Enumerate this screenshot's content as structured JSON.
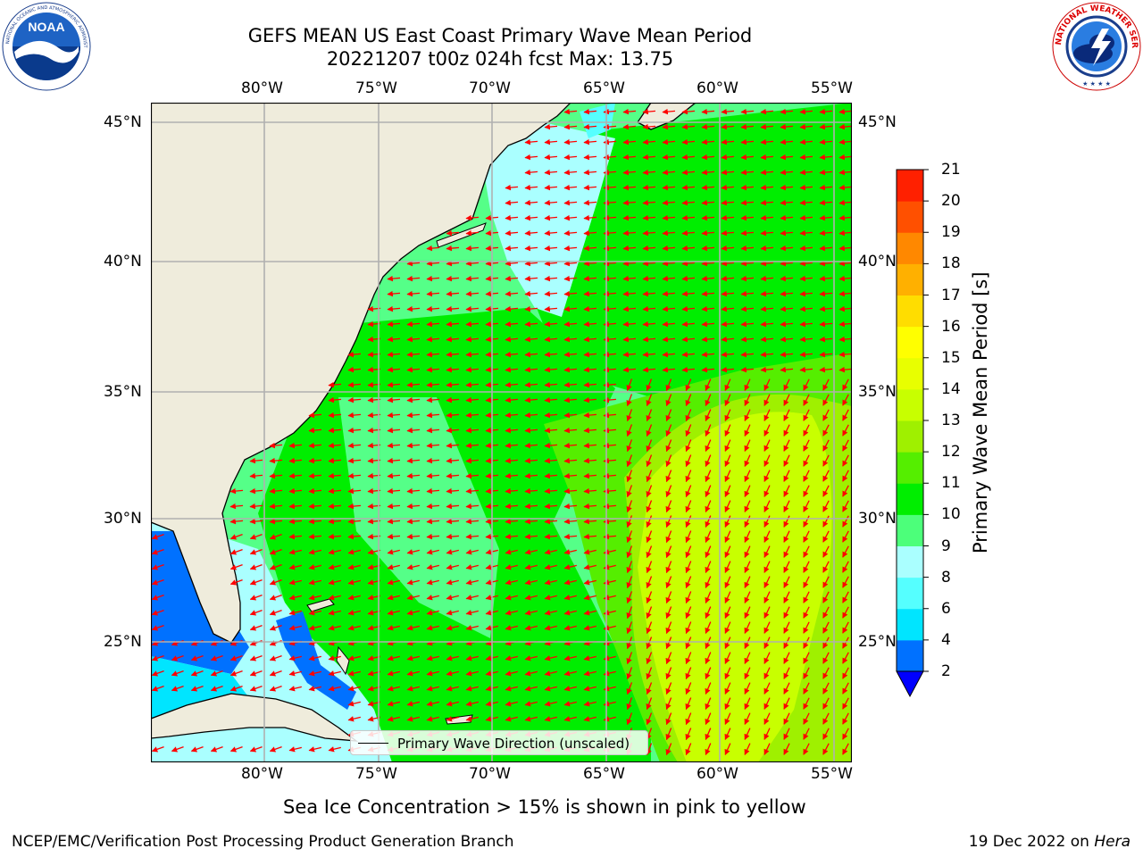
{
  "title": {
    "line1": "GEFS MEAN US East Coast Primary Wave Mean Period",
    "line2": "20221207 t00z 024h fcst   Max: 13.75"
  },
  "logos": {
    "left": {
      "icon": "noaa-logo",
      "text": "NOAA",
      "ring_text": "NATIONAL OCEANIC AND ATMOSPHERIC ADMINISTRATION · U.S. DEPARTMENT OF COMMERCE"
    },
    "right": {
      "icon": "nws-logo",
      "ring_text": "NATIONAL WEATHER SERVICE"
    }
  },
  "map": {
    "lon_labels": [
      "80°W",
      "75°W",
      "70°W",
      "65°W",
      "60°W",
      "55°W"
    ],
    "lat_labels": [
      "45°N",
      "40°N",
      "35°N",
      "30°N",
      "25°N"
    ],
    "lon_range": [
      -85,
      -54.2
    ],
    "lat_range": [
      20.2,
      46.6
    ],
    "gridlines": true,
    "land_color": "#efecdc",
    "arrow_color": "#ff0000"
  },
  "legend": {
    "label": "Primary Wave Direction (unscaled)"
  },
  "colorbar": {
    "title": "Primary Wave Mean Period [s]",
    "ticks": [
      "2",
      "4",
      "6",
      "8",
      "9",
      "10",
      "11",
      "12",
      "13",
      "14",
      "15",
      "16",
      "17",
      "18",
      "19",
      "20",
      "21"
    ],
    "colors": [
      "#0071ff",
      "#00e5ff",
      "#55ffff",
      "#aaffff",
      "#4cff7a",
      "#00ee00",
      "#55ee00",
      "#9ff000",
      "#c8ff00",
      "#e8ff00",
      "#ffff00",
      "#ffdd00",
      "#ffb000",
      "#ff8800",
      "#ff5000",
      "#ff2000"
    ],
    "under_color": "#0000ff"
  },
  "footer": {
    "note": "Sea Ice Concentration > 15% is shown in pink to yellow",
    "credit_left": "NCEP/EMC/Verification Post Processing Product Generation Branch",
    "credit_right_prefix": "19 Dec 2022 on ",
    "credit_right_host": "Hera"
  }
}
